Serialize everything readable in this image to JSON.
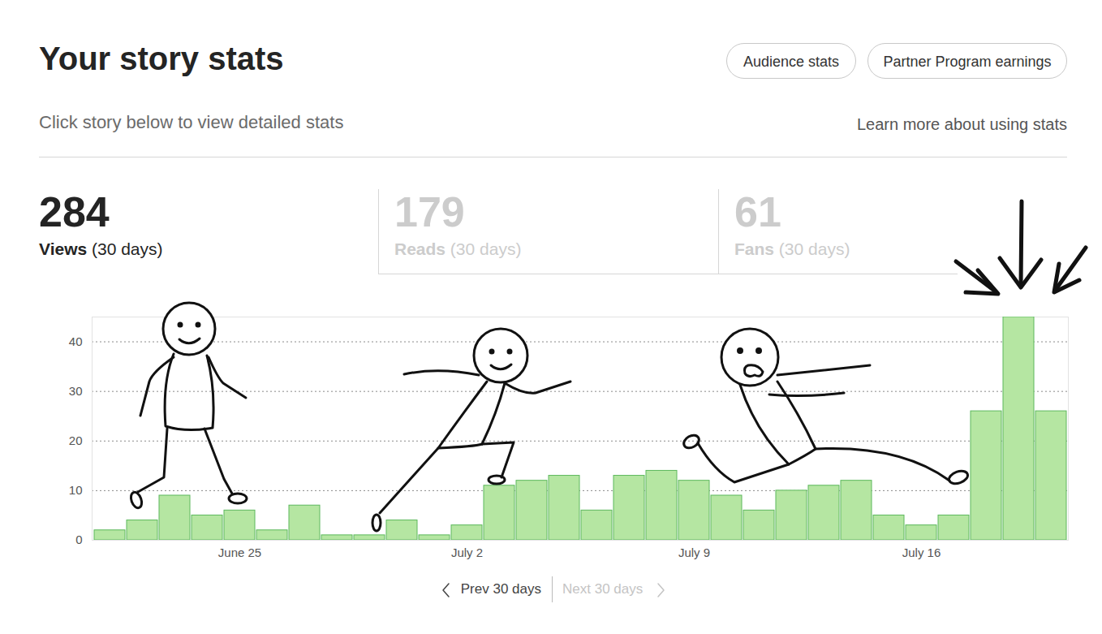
{
  "header": {
    "title": "Your story stats",
    "buttons": [
      "Audience stats",
      "Partner Program earnings"
    ],
    "subtitle": "Click story below to view detailed stats",
    "link": "Learn more about using stats"
  },
  "stats": [
    {
      "value": 284,
      "label": "Views",
      "period": "(30 days)",
      "active": true
    },
    {
      "value": 179,
      "label": "Reads",
      "period": "(30 days)",
      "active": false
    },
    {
      "value": 61,
      "label": "Fans",
      "period": "(30 days)",
      "active": false
    }
  ],
  "chart_data": {
    "type": "bar",
    "categories": [
      null,
      null,
      null,
      null,
      "June 25",
      null,
      null,
      null,
      null,
      null,
      null,
      "July 2",
      null,
      null,
      null,
      null,
      null,
      null,
      "July 9",
      null,
      null,
      null,
      null,
      null,
      null,
      "July 16",
      null,
      null,
      null,
      null
    ],
    "values": [
      2,
      4,
      9,
      5,
      6,
      2,
      7,
      1,
      1,
      4,
      1,
      3,
      11,
      12,
      13,
      6,
      13,
      14,
      12,
      9,
      6,
      10,
      11,
      12,
      5,
      3,
      5,
      26,
      45,
      26
    ],
    "color": "#b5e6a2",
    "ylim": [
      0,
      45
    ],
    "yticks": [
      0,
      10,
      20,
      30,
      40
    ],
    "grid": true
  },
  "pager": {
    "prev": "Prev 30 days",
    "next": "Next 30 days"
  }
}
